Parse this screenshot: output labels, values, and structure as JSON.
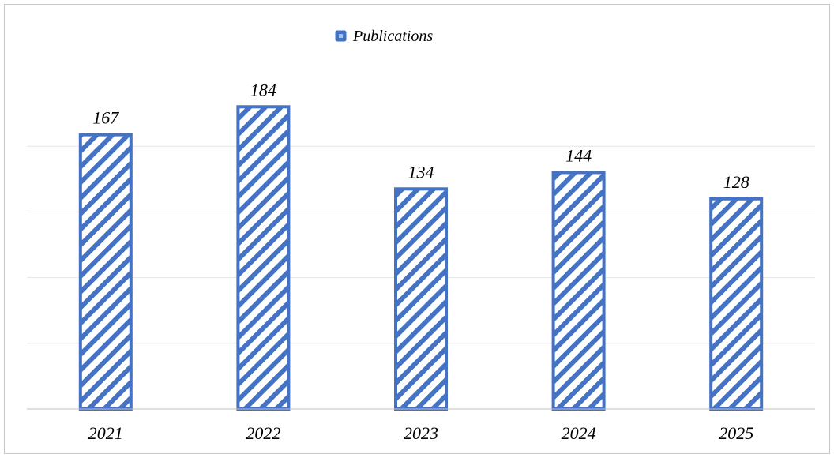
{
  "colors": {
    "bar_stroke": "#4472c4",
    "bar_hatch": "#4472c4",
    "bar_fill": "#ffffff",
    "axis": "#bfbfbf",
    "gridline": "#e6e6e6",
    "text": "#000000"
  },
  "chart_data": {
    "type": "bar",
    "categories": [
      "2021",
      "2022",
      "2023",
      "2024",
      "2025"
    ],
    "series": [
      {
        "name": "Publications",
        "values": [
          167,
          184,
          134,
          144,
          128
        ]
      }
    ],
    "data_labels": [
      "167",
      "184",
      "134",
      "144",
      "128"
    ],
    "legend": {
      "position": "top",
      "entries": [
        "Publications"
      ]
    },
    "pattern": "diagonal-hatch",
    "ylim": [
      0,
      200
    ],
    "grid": true,
    "y_axis_visible": false
  }
}
